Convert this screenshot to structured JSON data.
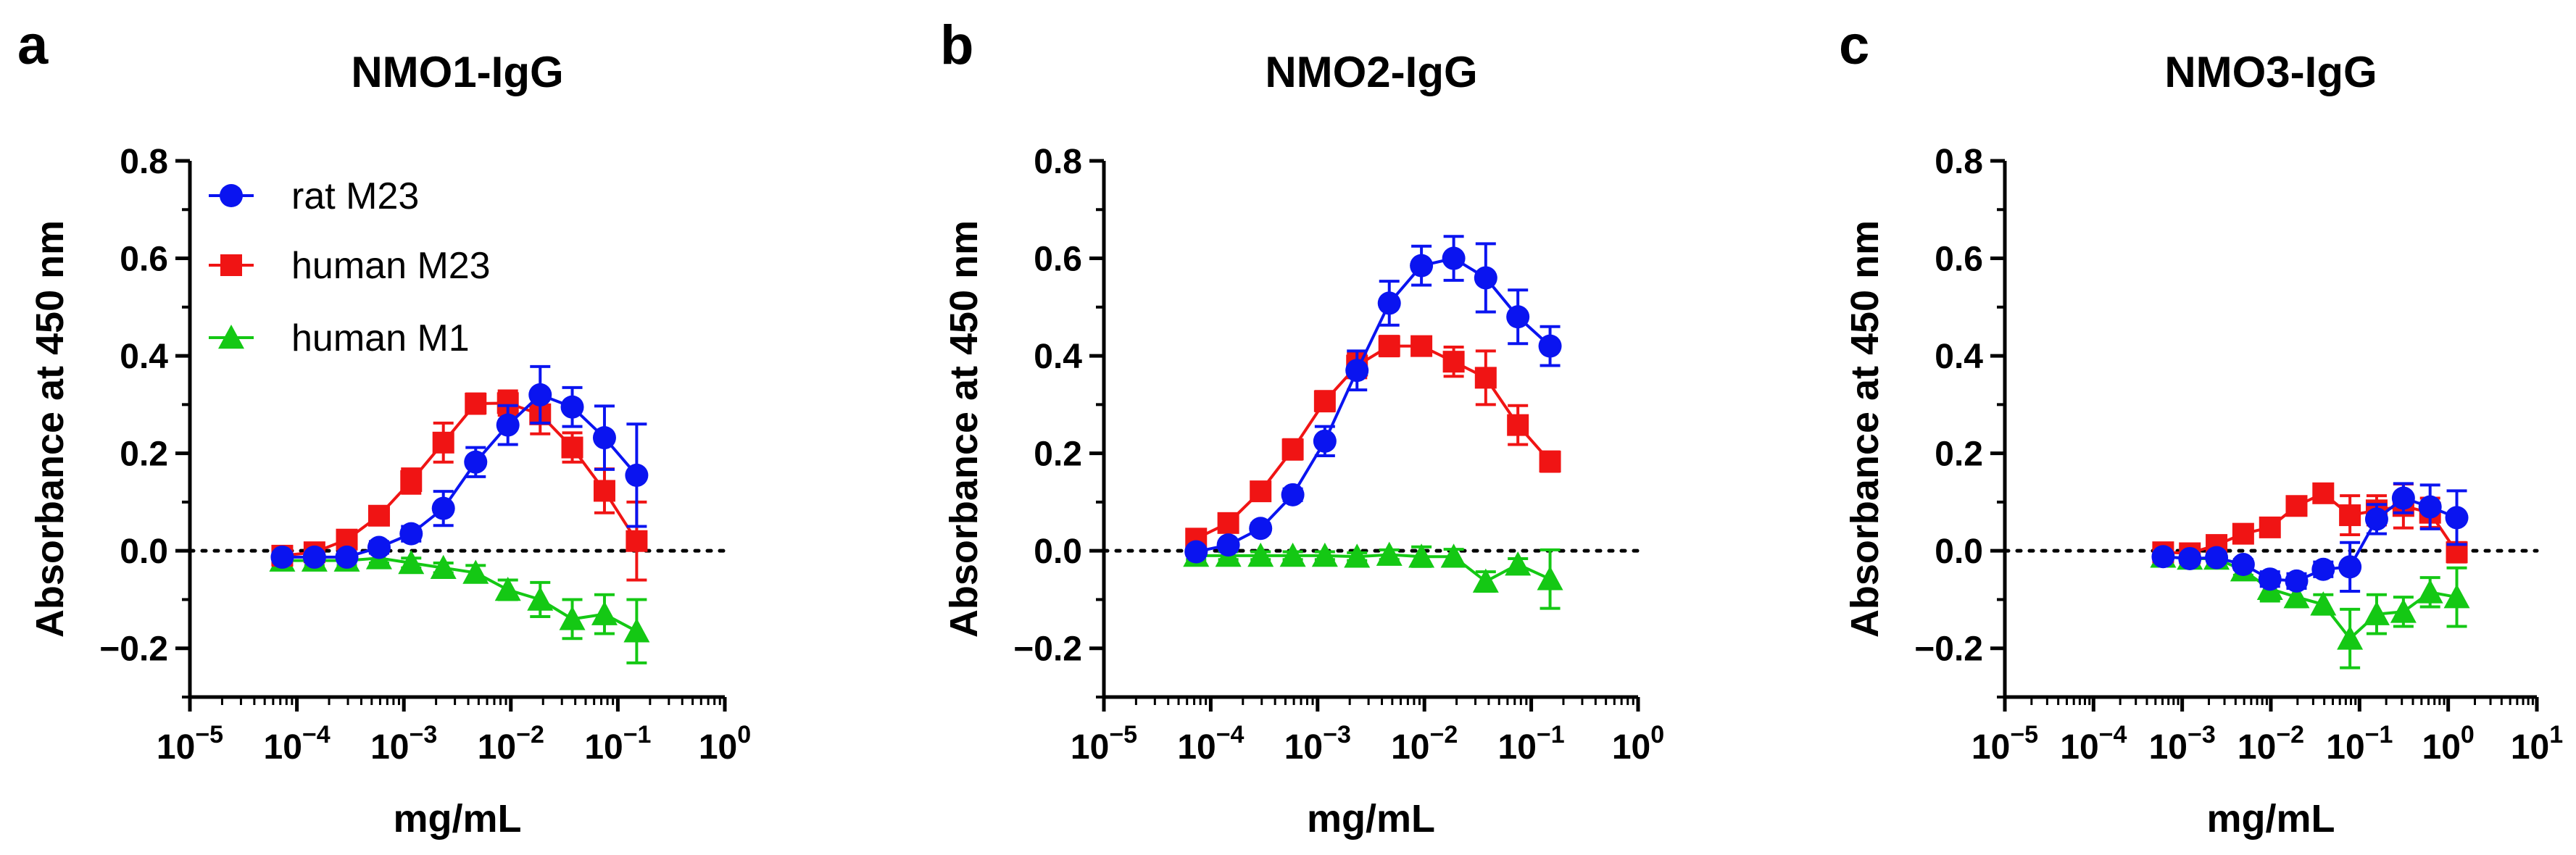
{
  "chart_data": [
    {
      "type": "line",
      "panel_label": "a",
      "title": "NMO1-IgG",
      "xlabel": "mg/mL",
      "ylabel": "Absorbance at 450 nm",
      "xscale": "log10",
      "xlim_exp": [
        -5,
        0
      ],
      "xticks": [
        {
          "base": "10",
          "exp": "−5"
        },
        {
          "base": "10",
          "exp": "−4"
        },
        {
          "base": "10",
          "exp": "−3"
        },
        {
          "base": "10",
          "exp": "−2"
        },
        {
          "base": "10",
          "exp": "−1"
        },
        {
          "base": "10",
          "exp": "0"
        }
      ],
      "ylim": [
        -0.3,
        0.8
      ],
      "yticks": [
        "0.8",
        "0.6",
        "0.4",
        "0.2",
        "0.0",
        "−0.2"
      ],
      "zero_line": "dotted",
      "legend_position": "top-left",
      "series": [
        {
          "name": "rat M23",
          "marker": "circle",
          "color": "#0a14f0",
          "x": [
            7.3e-05,
            0.000146,
            0.000293,
            0.000586,
            0.00117,
            0.00234,
            0.00469,
            0.00938,
            0.0188,
            0.0375,
            0.075,
            0.15
          ],
          "y": [
            -0.013,
            -0.013,
            -0.013,
            0.007,
            0.035,
            0.087,
            0.182,
            0.258,
            0.32,
            0.295,
            0.232,
            0.155
          ],
          "err": [
            0.01,
            0.01,
            0.01,
            0.012,
            0.015,
            0.035,
            0.03,
            0.04,
            0.058,
            0.04,
            0.065,
            0.105
          ]
        },
        {
          "name": "human M23",
          "marker": "square",
          "color": "#f01414",
          "x": [
            7.3e-05,
            0.000146,
            0.000293,
            0.000586,
            0.00117,
            0.00234,
            0.00469,
            0.00938,
            0.0188,
            0.0375,
            0.075,
            0.15
          ],
          "y": [
            -0.01,
            -0.003,
            0.023,
            0.072,
            0.143,
            0.222,
            0.302,
            0.303,
            0.28,
            0.212,
            0.123,
            0.02
          ],
          "err": [
            0.008,
            0.01,
            0.01,
            0.012,
            0.025,
            0.04,
            0.02,
            0.025,
            0.04,
            0.03,
            0.045,
            0.08
          ]
        },
        {
          "name": "human M1",
          "marker": "triangle",
          "color": "#14c814",
          "x": [
            7.3e-05,
            0.000146,
            0.000293,
            0.000586,
            0.00117,
            0.00234,
            0.00469,
            0.00938,
            0.0188,
            0.0375,
            0.075,
            0.15
          ],
          "y": [
            -0.02,
            -0.02,
            -0.02,
            -0.015,
            -0.025,
            -0.035,
            -0.045,
            -0.08,
            -0.1,
            -0.14,
            -0.13,
            -0.165
          ],
          "err": [
            0.01,
            0.01,
            0.01,
            0.01,
            0.01,
            0.01,
            0.015,
            0.02,
            0.035,
            0.04,
            0.04,
            0.065
          ]
        }
      ]
    },
    {
      "type": "line",
      "panel_label": "b",
      "title": "NMO2-IgG",
      "xlabel": "mg/mL",
      "ylabel": "Absorbance at 450 nm",
      "xscale": "log10",
      "xlim_exp": [
        -5,
        0
      ],
      "xticks": [
        {
          "base": "10",
          "exp": "−5"
        },
        {
          "base": "10",
          "exp": "−4"
        },
        {
          "base": "10",
          "exp": "−3"
        },
        {
          "base": "10",
          "exp": "−2"
        },
        {
          "base": "10",
          "exp": "−1"
        },
        {
          "base": "10",
          "exp": "0"
        }
      ],
      "ylim": [
        -0.3,
        0.8
      ],
      "yticks": [
        "0.8",
        "0.6",
        "0.4",
        "0.2",
        "0.0",
        "−0.2"
      ],
      "zero_line": "dotted",
      "series": [
        {
          "name": "rat M23",
          "marker": "circle",
          "color": "#0a14f0",
          "x": [
            7.3e-05,
            0.000146,
            0.000293,
            0.000586,
            0.00117,
            0.00234,
            0.00469,
            0.00938,
            0.0188,
            0.0375,
            0.075,
            0.15
          ],
          "y": [
            -0.002,
            0.012,
            0.046,
            0.115,
            0.225,
            0.37,
            0.508,
            0.585,
            0.6,
            0.56,
            0.48,
            0.42
          ],
          "err": [
            0.008,
            0.008,
            0.01,
            0.012,
            0.03,
            0.04,
            0.045,
            0.04,
            0.045,
            0.07,
            0.055,
            0.04
          ]
        },
        {
          "name": "human M23",
          "marker": "square",
          "color": "#f01414",
          "x": [
            7.3e-05,
            0.000146,
            0.000293,
            0.000586,
            0.00117,
            0.00234,
            0.00469,
            0.00938,
            0.0188,
            0.0375,
            0.075,
            0.15
          ],
          "y": [
            0.025,
            0.057,
            0.122,
            0.208,
            0.307,
            0.38,
            0.42,
            0.42,
            0.388,
            0.355,
            0.258,
            0.183
          ],
          "err": [
            0.01,
            0.01,
            0.012,
            0.02,
            0.02,
            0.025,
            0.02,
            0.018,
            0.03,
            0.055,
            0.04,
            0.02
          ]
        },
        {
          "name": "human M1",
          "marker": "triangle",
          "color": "#14c814",
          "x": [
            7.3e-05,
            0.000146,
            0.000293,
            0.000586,
            0.00117,
            0.00234,
            0.00469,
            0.00938,
            0.0188,
            0.0375,
            0.075,
            0.15
          ],
          "y": [
            -0.01,
            -0.01,
            -0.01,
            -0.01,
            -0.01,
            -0.012,
            -0.008,
            -0.012,
            -0.012,
            -0.063,
            -0.028,
            -0.058
          ],
          "err": [
            0.008,
            0.008,
            0.008,
            0.008,
            0.008,
            0.008,
            0.01,
            0.02,
            0.015,
            0.02,
            0.012,
            0.06
          ]
        }
      ]
    },
    {
      "type": "line",
      "panel_label": "c",
      "title": "NMO3-IgG",
      "xlabel": "mg/mL",
      "ylabel": "Absorbance at 450 nm",
      "xscale": "log10",
      "xlim_exp": [
        -5,
        1
      ],
      "xticks": [
        {
          "base": "10",
          "exp": "−5"
        },
        {
          "base": "10",
          "exp": "−4"
        },
        {
          "base": "10",
          "exp": "−3"
        },
        {
          "base": "10",
          "exp": "−2"
        },
        {
          "base": "10",
          "exp": "−1"
        },
        {
          "base": "10",
          "exp": "0"
        },
        {
          "base": "10",
          "exp": "1"
        }
      ],
      "ylim": [
        -0.3,
        0.8
      ],
      "yticks": [
        "0.8",
        "0.6",
        "0.4",
        "0.2",
        "0.0",
        "−0.2"
      ],
      "zero_line": "dotted",
      "series": [
        {
          "name": "rat M23",
          "marker": "circle",
          "color": "#0a14f0",
          "x": [
            0.00061,
            0.00122,
            0.00244,
            0.00488,
            0.00977,
            0.0195,
            0.039,
            0.078,
            0.156,
            0.3125,
            0.625,
            1.25
          ],
          "y": [
            -0.012,
            -0.016,
            -0.014,
            -0.028,
            -0.058,
            -0.062,
            -0.038,
            -0.033,
            0.065,
            0.108,
            0.09,
            0.068
          ],
          "err": [
            0.008,
            0.01,
            0.01,
            0.01,
            0.015,
            0.015,
            0.015,
            0.05,
            0.03,
            0.03,
            0.045,
            0.055
          ]
        },
        {
          "name": "human M23",
          "marker": "square",
          "color": "#f01414",
          "x": [
            0.00061,
            0.00122,
            0.00244,
            0.00488,
            0.00977,
            0.0195,
            0.039,
            0.078,
            0.156,
            0.3125,
            0.625,
            1.25
          ],
          "y": [
            -0.003,
            -0.005,
            0.012,
            0.035,
            0.048,
            0.092,
            0.118,
            0.073,
            0.083,
            0.092,
            0.078,
            -0.003
          ],
          "err": [
            0.008,
            0.008,
            0.01,
            0.01,
            0.01,
            0.01,
            0.012,
            0.04,
            0.03,
            0.045,
            0.03,
            0.02
          ]
        },
        {
          "name": "human M1",
          "marker": "triangle",
          "color": "#14c814",
          "x": [
            0.00061,
            0.00122,
            0.00244,
            0.00488,
            0.00977,
            0.0195,
            0.039,
            0.078,
            0.156,
            0.3125,
            0.625,
            1.25
          ],
          "y": [
            -0.012,
            -0.016,
            -0.016,
            -0.04,
            -0.078,
            -0.095,
            -0.11,
            -0.18,
            -0.13,
            -0.125,
            -0.085,
            -0.095
          ],
          "err": [
            0.008,
            0.008,
            0.008,
            0.01,
            0.025,
            0.02,
            0.02,
            0.06,
            0.04,
            0.03,
            0.03,
            0.06
          ]
        }
      ]
    }
  ]
}
